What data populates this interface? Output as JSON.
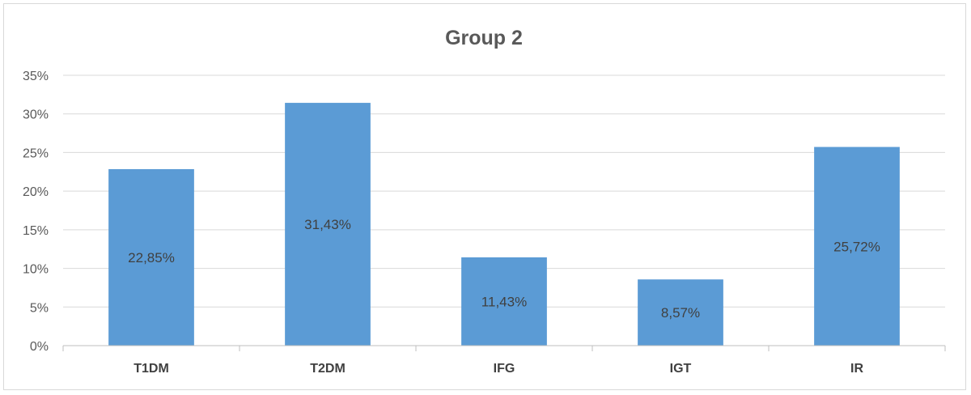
{
  "chart_data": {
    "type": "bar",
    "title": "Group 2",
    "categories": [
      "T1DM",
      "T2DM",
      "IFG",
      "IGT",
      "IR"
    ],
    "values": [
      22.85,
      31.43,
      11.43,
      8.57,
      25.72
    ],
    "data_labels": [
      "22,85%",
      "31,43%",
      "11,43%",
      "8,57%",
      "25,72%"
    ],
    "y_ticks": [
      "0%",
      "5%",
      "10%",
      "15%",
      "20%",
      "25%",
      "30%",
      "35%"
    ],
    "ylim": [
      0,
      35
    ],
    "grid": true,
    "legend": "none",
    "bar_color": "#5b9bd5"
  }
}
